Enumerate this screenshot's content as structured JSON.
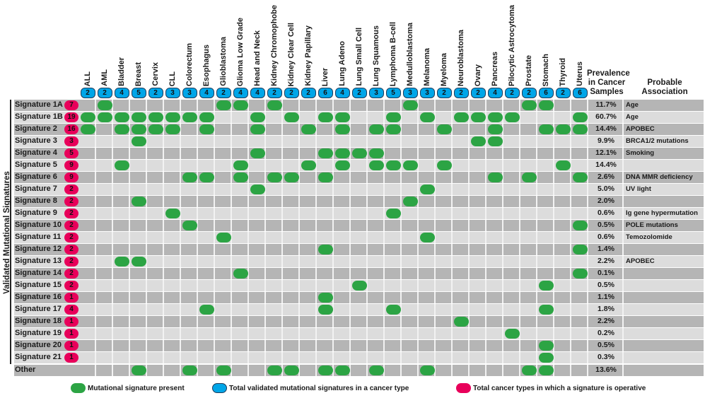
{
  "y_axis_label": "Validated Mutational Signatures",
  "headers": {
    "prevalence": "Prevalence in Cancer Samples",
    "association": "Probable Association"
  },
  "colors": {
    "present": "#2ca444",
    "total_per_cancer": "#00a6e8",
    "total_per_signature": "#e8005a",
    "row_dark": "#b5b5b5",
    "row_light": "#dcdcdc"
  },
  "columns": [
    {
      "name": "ALL",
      "count": "2"
    },
    {
      "name": "AML",
      "count": "2"
    },
    {
      "name": "Bladder",
      "count": "4"
    },
    {
      "name": "Breast",
      "count": "5"
    },
    {
      "name": "Cervix",
      "count": "2"
    },
    {
      "name": "CLL",
      "count": "3"
    },
    {
      "name": "Colorectum",
      "count": "3"
    },
    {
      "name": "Esophagus",
      "count": "4"
    },
    {
      "name": "Glioblastoma",
      "count": "2"
    },
    {
      "name": "Glioma Low Grade",
      "count": "4"
    },
    {
      "name": "Head and Neck",
      "count": "4"
    },
    {
      "name": "Kidney Chromophobe",
      "count": "2"
    },
    {
      "name": "Kidney Clear Cell",
      "count": "2"
    },
    {
      "name": "Kidney Papillary",
      "count": "2"
    },
    {
      "name": "Liver",
      "count": "6"
    },
    {
      "name": "Lung Adeno",
      "count": "4"
    },
    {
      "name": "Lung Small Cell",
      "count": "2"
    },
    {
      "name": "Lung Squamous",
      "count": "3"
    },
    {
      "name": "Lymphoma B-cell",
      "count": "5"
    },
    {
      "name": "Medulloblastoma",
      "count": "3"
    },
    {
      "name": "Melanoma",
      "count": "3"
    },
    {
      "name": "Myeloma",
      "count": "2"
    },
    {
      "name": "Neuroblastoma",
      "count": "2"
    },
    {
      "name": "Ovary",
      "count": "2"
    },
    {
      "name": "Pancreas",
      "count": "4"
    },
    {
      "name": "Pilocytic Astrocytoma",
      "count": "2"
    },
    {
      "name": "Prostate",
      "count": "2"
    },
    {
      "name": "Stomach",
      "count": "6"
    },
    {
      "name": "Thyroid",
      "count": "2"
    },
    {
      "name": "Uterus",
      "count": "6"
    }
  ],
  "rows": [
    {
      "label": "Signature 1A",
      "count": "7",
      "prevalence": "11.7%",
      "association": "Age",
      "present": [
        1,
        8,
        9,
        11,
        19,
        26,
        27
      ]
    },
    {
      "label": "Signature 1B",
      "count": "19",
      "prevalence": "60.7%",
      "association": "Age",
      "present": [
        0,
        1,
        2,
        3,
        4,
        5,
        6,
        7,
        10,
        12,
        14,
        15,
        18,
        20,
        22,
        23,
        24,
        25,
        29
      ]
    },
    {
      "label": "Signature 2",
      "count": "16",
      "prevalence": "14.4%",
      "association": "APOBEC",
      "present": [
        0,
        2,
        3,
        4,
        5,
        7,
        10,
        13,
        15,
        17,
        18,
        21,
        24,
        27,
        28,
        29
      ]
    },
    {
      "label": "Signature 3",
      "count": "3",
      "prevalence": "9.9%",
      "association": "BRCA1/2 mutations",
      "present": [
        3,
        23,
        24
      ]
    },
    {
      "label": "Signature 4",
      "count": "5",
      "prevalence": "12.1%",
      "association": "Smoking",
      "present": [
        10,
        14,
        15,
        16,
        17
      ]
    },
    {
      "label": "Signature 5",
      "count": "9",
      "prevalence": "14.4%",
      "association": "",
      "present": [
        2,
        9,
        13,
        15,
        17,
        18,
        19,
        21,
        28
      ]
    },
    {
      "label": "Signature 6",
      "count": "9",
      "prevalence": "2.6%",
      "association": "DNA MMR deficiency",
      "present": [
        6,
        7,
        9,
        11,
        12,
        14,
        24,
        26,
        29
      ]
    },
    {
      "label": "Signature 7",
      "count": "2",
      "prevalence": "5.0%",
      "association": "UV light",
      "present": [
        10,
        20
      ]
    },
    {
      "label": "Signature 8",
      "count": "2",
      "prevalence": "2.0%",
      "association": "",
      "present": [
        3,
        19
      ]
    },
    {
      "label": "Signature 9",
      "count": "2",
      "prevalence": "0.6%",
      "association": "Ig gene hypermutation",
      "present": [
        5,
        18
      ]
    },
    {
      "label": "Signature 10",
      "count": "2",
      "prevalence": "0.5%",
      "association": "POLE mutations",
      "present": [
        6,
        29
      ]
    },
    {
      "label": "Signature 11",
      "count": "2",
      "prevalence": "0.6%",
      "association": "Temozolomide",
      "present": [
        8,
        20
      ]
    },
    {
      "label": "Signature 12",
      "count": "2",
      "prevalence": "1.4%",
      "association": "",
      "present": [
        14,
        29
      ]
    },
    {
      "label": "Signature 13",
      "count": "2",
      "prevalence": "2.2%",
      "association": "APOBEC",
      "present": [
        2,
        3
      ]
    },
    {
      "label": "Signature 14",
      "count": "2",
      "prevalence": "0.1%",
      "association": "",
      "present": [
        9,
        29
      ]
    },
    {
      "label": "Signature 15",
      "count": "2",
      "prevalence": "0.5%",
      "association": "",
      "present": [
        16,
        27
      ]
    },
    {
      "label": "Signature 16",
      "count": "1",
      "prevalence": "1.1%",
      "association": "",
      "present": [
        14
      ]
    },
    {
      "label": "Signature 17",
      "count": "4",
      "prevalence": "1.8%",
      "association": "",
      "present": [
        7,
        14,
        18,
        27
      ]
    },
    {
      "label": "Signature 18",
      "count": "1",
      "prevalence": "2.2%",
      "association": "",
      "present": [
        22
      ]
    },
    {
      "label": "Signature 19",
      "count": "1",
      "prevalence": "0.2%",
      "association": "",
      "present": [
        25
      ]
    },
    {
      "label": "Signature 20",
      "count": "1",
      "prevalence": "0.5%",
      "association": "",
      "present": [
        27
      ]
    },
    {
      "label": "Signature 21",
      "count": "1",
      "prevalence": "0.3%",
      "association": "",
      "present": [
        27
      ]
    },
    {
      "label": "Other",
      "count": "",
      "prevalence": "13.6%",
      "association": "",
      "present": [
        3,
        6,
        8,
        11,
        12,
        14,
        15,
        17,
        20,
        26,
        27
      ]
    }
  ],
  "legend": [
    {
      "label": "Mutational signature present",
      "color": "#2ca444"
    },
    {
      "label": "Total validated mutational signatures in a cancer type",
      "color": "#00a6e8"
    },
    {
      "label": "Total cancer types in which a signature is operative",
      "color": "#e8005a"
    }
  ]
}
